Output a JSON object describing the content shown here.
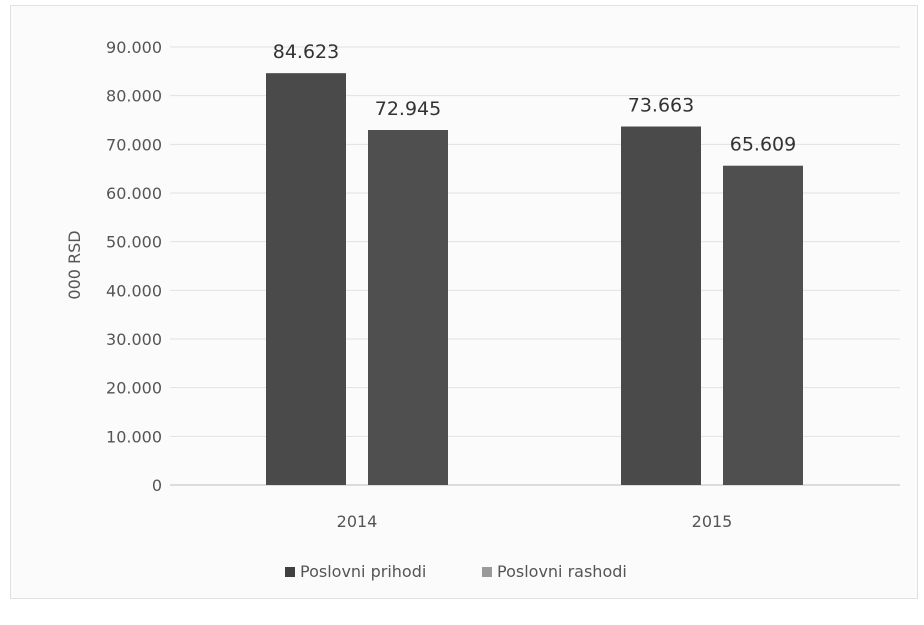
{
  "chart_data": {
    "type": "bar",
    "title": "",
    "xlabel": "",
    "ylabel": "000 RSD",
    "categories": [
      "2014",
      "2015"
    ],
    "series": [
      {
        "name": "Poslovni prihodi",
        "values": [
          84623,
          73663
        ]
      },
      {
        "name": "Poslovni rashodi",
        "values": [
          72945,
          65609
        ]
      }
    ],
    "value_labels": [
      [
        "84.623",
        "73.663"
      ],
      [
        "72.945",
        "65.609"
      ]
    ],
    "yticks": [
      "0",
      "10.000",
      "20.000",
      "30.000",
      "40.000",
      "50.000",
      "60.000",
      "70.000",
      "80.000",
      "90.000"
    ],
    "ylim": [
      0,
      90000
    ],
    "grid": true,
    "legend_position": "bottom",
    "colors": {
      "series1": "#4a4a4a",
      "series2": "#4f4f4f",
      "grid": "#e2e2e2",
      "axis": "#bcbcbc",
      "text": "#555555"
    }
  }
}
